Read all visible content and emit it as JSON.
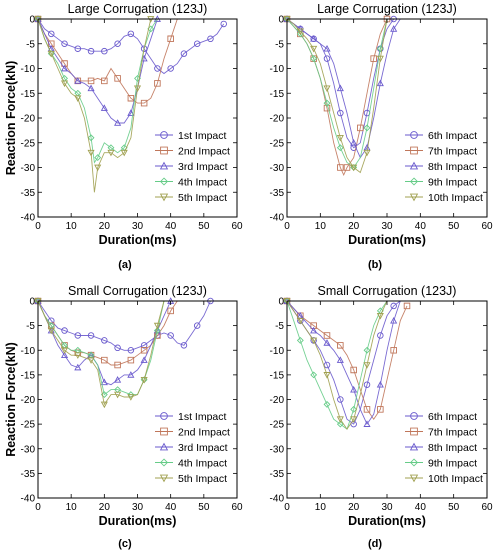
{
  "chart_data": [
    {
      "type": "line",
      "panel_label": "(a)",
      "title": "Large Corrugation (123J)",
      "xlabel": "Duration(ms)",
      "ylabel": "Reaction Force(kN)",
      "xlim": [
        0,
        60
      ],
      "ylim": [
        -40,
        0
      ],
      "xticks": [
        0,
        10,
        20,
        30,
        40,
        50,
        60
      ],
      "yticks": [
        -40,
        -35,
        -30,
        -25,
        -20,
        -15,
        -10,
        -5,
        0
      ],
      "legend_position": "bottom-right",
      "series": [
        {
          "name": "1st Impact",
          "marker": "circle",
          "color": "#6a5acd",
          "x": [
            0,
            2,
            4,
            6,
            8,
            10,
            12,
            14,
            16,
            18,
            20,
            22,
            24,
            26,
            28,
            30,
            32,
            34,
            36,
            38,
            40,
            42,
            44,
            46,
            48,
            50,
            52,
            54,
            56
          ],
          "y": [
            0,
            -2,
            -3,
            -4,
            -5,
            -5.5,
            -6,
            -6,
            -6.5,
            -6.5,
            -6.5,
            -6,
            -5,
            -3.5,
            -3,
            -4,
            -6,
            -8,
            -10,
            -11,
            -10,
            -9,
            -7,
            -6,
            -5,
            -4.5,
            -4,
            -3,
            -1
          ]
        },
        {
          "name": "2nd Impact",
          "marker": "square",
          "color": "#c0765a",
          "x": [
            0,
            2,
            4,
            6,
            8,
            10,
            12,
            14,
            16,
            18,
            20,
            22,
            24,
            26,
            28,
            30,
            32,
            34,
            36,
            38,
            40,
            42
          ],
          "y": [
            0,
            -3,
            -5,
            -7,
            -9,
            -11,
            -12.5,
            -12.5,
            -12.5,
            -12,
            -12.5,
            -10,
            -12,
            -14,
            -16,
            -17,
            -17,
            -16,
            -13,
            -8,
            -4,
            0
          ]
        },
        {
          "name": "3rd Impact",
          "marker": "triangle",
          "color": "#6a5acd",
          "x": [
            0,
            2,
            4,
            6,
            8,
            10,
            12,
            14,
            16,
            18,
            20,
            22,
            24,
            26,
            28,
            30,
            32,
            34,
            36
          ],
          "y": [
            0,
            -3,
            -6,
            -8,
            -10,
            -11,
            -12.5,
            -13,
            -14,
            -16,
            -18,
            -20,
            -21,
            -21,
            -19,
            -14,
            -8,
            -4,
            0
          ]
        },
        {
          "name": "4th Impact",
          "marker": "diamond",
          "color": "#66cc88",
          "x": [
            0,
            2,
            4,
            6,
            8,
            10,
            12,
            14,
            16,
            17,
            18,
            20,
            22,
            24,
            26,
            28,
            30,
            32,
            34,
            36
          ],
          "y": [
            0,
            -4,
            -7,
            -9,
            -12,
            -14,
            -15,
            -18,
            -24,
            -29,
            -28,
            -25,
            -26,
            -27,
            -26,
            -22,
            -12,
            -6,
            -2,
            0
          ]
        },
        {
          "name": "5th Impact",
          "marker": "triangle-down",
          "color": "#a0a050",
          "x": [
            0,
            2,
            4,
            6,
            8,
            10,
            12,
            14,
            16,
            17,
            18,
            20,
            22,
            24,
            26,
            28,
            30,
            32,
            34
          ],
          "y": [
            0,
            -4,
            -7,
            -10,
            -13,
            -15,
            -16,
            -20,
            -27,
            -35,
            -30,
            -27,
            -27,
            -28,
            -27,
            -24,
            -14,
            -6,
            0
          ]
        }
      ]
    },
    {
      "type": "line",
      "panel_label": "(b)",
      "title": "Large Corrugation (123J)",
      "xlabel": "Duration(ms)",
      "ylabel": "",
      "xlim": [
        0,
        60
      ],
      "ylim": [
        -40,
        0
      ],
      "xticks": [
        0,
        10,
        20,
        30,
        40,
        50,
        60
      ],
      "yticks": [
        -40,
        -35,
        -30,
        -25,
        -20,
        -15,
        -10,
        -5,
        0
      ],
      "legend_position": "bottom-right",
      "series": [
        {
          "name": "6th Impact",
          "marker": "circle",
          "color": "#6a5acd",
          "x": [
            0,
            2,
            4,
            6,
            8,
            10,
            12,
            14,
            16,
            18,
            20,
            22,
            24,
            26,
            28,
            30,
            32
          ],
          "y": [
            0,
            -1,
            -2,
            -3,
            -4,
            -5,
            -8,
            -13,
            -19,
            -24,
            -26,
            -25,
            -19,
            -12,
            -6,
            -2,
            0
          ]
        },
        {
          "name": "7th Impact",
          "marker": "square",
          "color": "#c0765a",
          "x": [
            0,
            2,
            4,
            6,
            8,
            10,
            12,
            14,
            16,
            17,
            18,
            20,
            22,
            24,
            26,
            28,
            30
          ],
          "y": [
            0,
            -1.5,
            -3,
            -5,
            -8,
            -12,
            -18,
            -25,
            -30,
            -31.5,
            -30,
            -28,
            -22,
            -15,
            -8,
            -3,
            0
          ]
        },
        {
          "name": "8th Impact",
          "marker": "triangle",
          "color": "#6a5acd",
          "x": [
            0,
            2,
            4,
            6,
            8,
            10,
            12,
            14,
            16,
            18,
            20,
            22,
            24,
            26,
            28,
            30,
            32,
            34
          ],
          "y": [
            0,
            -1,
            -2,
            -3,
            -4,
            -5,
            -6,
            -9,
            -14,
            -19,
            -25,
            -28,
            -26,
            -20,
            -13,
            -7,
            -2,
            0
          ]
        },
        {
          "name": "9th Impact",
          "marker": "diamond",
          "color": "#66cc88",
          "x": [
            0,
            2,
            4,
            6,
            8,
            10,
            12,
            14,
            16,
            18,
            20,
            22,
            24,
            26,
            28,
            30
          ],
          "y": [
            0,
            -1.5,
            -3,
            -5,
            -8,
            -12,
            -17,
            -22,
            -26,
            -29,
            -30,
            -28,
            -22,
            -14,
            -6,
            0
          ]
        },
        {
          "name": "10th Impact",
          "marker": "triangle-down",
          "color": "#a0a050",
          "x": [
            0,
            2,
            4,
            6,
            8,
            10,
            12,
            14,
            16,
            18,
            20,
            22,
            24,
            26,
            28,
            30
          ],
          "y": [
            0,
            -1,
            -2.5,
            -4,
            -6,
            -9,
            -14,
            -19,
            -24,
            -28,
            -30,
            -31,
            -27,
            -18,
            -8,
            0
          ]
        }
      ]
    },
    {
      "type": "line",
      "panel_label": "(c)",
      "title": "Small Corrugation (123J)",
      "xlabel": "Duration(ms)",
      "ylabel": "Reaction Force(kN)",
      "xlim": [
        0,
        60
      ],
      "ylim": [
        -40,
        0
      ],
      "xticks": [
        0,
        10,
        20,
        30,
        40,
        50,
        60
      ],
      "yticks": [
        -40,
        -35,
        -30,
        -25,
        -20,
        -15,
        -10,
        -5,
        0
      ],
      "legend_position": "bottom-right",
      "series": [
        {
          "name": "1st Impact",
          "marker": "circle",
          "color": "#6a5acd",
          "x": [
            0,
            2,
            4,
            6,
            8,
            10,
            12,
            14,
            16,
            18,
            20,
            22,
            24,
            26,
            28,
            30,
            32,
            34,
            36,
            38,
            40,
            42,
            44,
            46,
            48,
            50,
            52
          ],
          "y": [
            0,
            -2,
            -4,
            -5.5,
            -6,
            -6.5,
            -7,
            -7,
            -7,
            -7.5,
            -8,
            -8.5,
            -9.5,
            -10,
            -10,
            -9.5,
            -9,
            -8,
            -7,
            -6.5,
            -7,
            -8.5,
            -9,
            -7,
            -5,
            -3,
            0
          ]
        },
        {
          "name": "2nd Impact",
          "marker": "square",
          "color": "#c0765a",
          "x": [
            0,
            2,
            4,
            6,
            8,
            10,
            12,
            14,
            16,
            18,
            20,
            22,
            24,
            26,
            28,
            30,
            32,
            34,
            36,
            38,
            40,
            42
          ],
          "y": [
            0,
            -3,
            -5,
            -7,
            -9,
            -10,
            -10.5,
            -10.5,
            -11,
            -11.5,
            -12,
            -13,
            -13,
            -12.5,
            -12,
            -11,
            -10,
            -9,
            -7,
            -5,
            -2,
            0
          ]
        },
        {
          "name": "3rd Impact",
          "marker": "triangle",
          "color": "#6a5acd",
          "x": [
            0,
            2,
            4,
            6,
            8,
            10,
            12,
            14,
            16,
            18,
            20,
            22,
            24,
            26,
            28,
            30,
            32,
            34,
            36,
            38,
            40
          ],
          "y": [
            0,
            -3,
            -6,
            -9,
            -11,
            -13,
            -13.5,
            -12,
            -11,
            -13,
            -16.5,
            -17,
            -16,
            -15,
            -15,
            -14,
            -12,
            -9,
            -6,
            -3,
            0
          ]
        },
        {
          "name": "4th Impact",
          "marker": "diamond",
          "color": "#66cc88",
          "x": [
            0,
            2,
            4,
            6,
            8,
            10,
            12,
            14,
            16,
            18,
            20,
            22,
            24,
            26,
            28,
            30,
            32,
            34,
            36,
            38
          ],
          "y": [
            0,
            -3,
            -5,
            -7,
            -9,
            -10,
            -10,
            -10.5,
            -11,
            -13,
            -19,
            -18,
            -18,
            -18.5,
            -19,
            -19,
            -16,
            -12,
            -6,
            0
          ]
        },
        {
          "name": "5th Impact",
          "marker": "triangle-down",
          "color": "#a0a050",
          "x": [
            0,
            2,
            4,
            6,
            8,
            10,
            12,
            14,
            16,
            18,
            20,
            22,
            24,
            26,
            28,
            30,
            32,
            34,
            36,
            38
          ],
          "y": [
            0,
            -3,
            -6,
            -8,
            -10,
            -11,
            -11,
            -11.5,
            -12,
            -14,
            -21,
            -19,
            -19,
            -19.5,
            -19.5,
            -19,
            -16,
            -11,
            -5,
            0
          ]
        }
      ]
    },
    {
      "type": "line",
      "panel_label": "(d)",
      "title": "Small Corrugation (123J)",
      "xlabel": "Duration(ms)",
      "ylabel": "",
      "xlim": [
        0,
        60
      ],
      "ylim": [
        -40,
        0
      ],
      "xticks": [
        0,
        10,
        20,
        30,
        40,
        50,
        60
      ],
      "yticks": [
        -40,
        -35,
        -30,
        -25,
        -20,
        -15,
        -10,
        -5,
        0
      ],
      "legend_position": "bottom-right",
      "series": [
        {
          "name": "6th Impact",
          "marker": "circle",
          "color": "#6a5acd",
          "x": [
            0,
            2,
            4,
            6,
            8,
            10,
            12,
            14,
            16,
            18,
            20,
            22,
            24,
            26,
            28,
            30,
            32,
            34
          ],
          "y": [
            0,
            -2,
            -4,
            -6,
            -8,
            -10,
            -13,
            -16,
            -20,
            -24,
            -25,
            -22,
            -17,
            -12,
            -7,
            -3,
            -1,
            0
          ]
        },
        {
          "name": "7th Impact",
          "marker": "square",
          "color": "#c0765a",
          "x": [
            0,
            2,
            4,
            6,
            8,
            10,
            12,
            14,
            16,
            18,
            20,
            22,
            24,
            26,
            28,
            30,
            32,
            34,
            36
          ],
          "y": [
            0,
            -1.5,
            -3,
            -4,
            -5,
            -6,
            -7,
            -8,
            -9,
            -11,
            -14,
            -18,
            -22,
            -24,
            -22,
            -16,
            -10,
            -4,
            -1
          ]
        },
        {
          "name": "8th Impact",
          "marker": "triangle",
          "color": "#6a5acd",
          "x": [
            0,
            2,
            4,
            6,
            8,
            10,
            12,
            14,
            16,
            18,
            20,
            22,
            24,
            26,
            28,
            30,
            32,
            34
          ],
          "y": [
            0,
            -1.5,
            -3,
            -4.5,
            -6,
            -7,
            -8.5,
            -10,
            -12,
            -15,
            -18,
            -22,
            -25,
            -23,
            -17,
            -10,
            -4,
            0
          ]
        },
        {
          "name": "9th Impact",
          "marker": "diamond",
          "color": "#66cc88",
          "x": [
            0,
            2,
            4,
            6,
            8,
            10,
            12,
            14,
            16,
            18,
            20,
            22,
            24,
            26,
            28,
            30
          ],
          "y": [
            0,
            -4,
            -8,
            -12,
            -15,
            -18,
            -21,
            -24,
            -25,
            -26,
            -22,
            -16,
            -10,
            -5,
            -2,
            0
          ]
        },
        {
          "name": "10th Impact",
          "marker": "triangle-down",
          "color": "#a0a050",
          "x": [
            0,
            2,
            4,
            6,
            8,
            10,
            12,
            14,
            16,
            18,
            20,
            22,
            24,
            26,
            28,
            30
          ],
          "y": [
            0,
            -2,
            -4,
            -6,
            -8,
            -11,
            -15,
            -20,
            -24,
            -26,
            -24,
            -19,
            -13,
            -7,
            -3,
            0
          ]
        }
      ]
    }
  ]
}
